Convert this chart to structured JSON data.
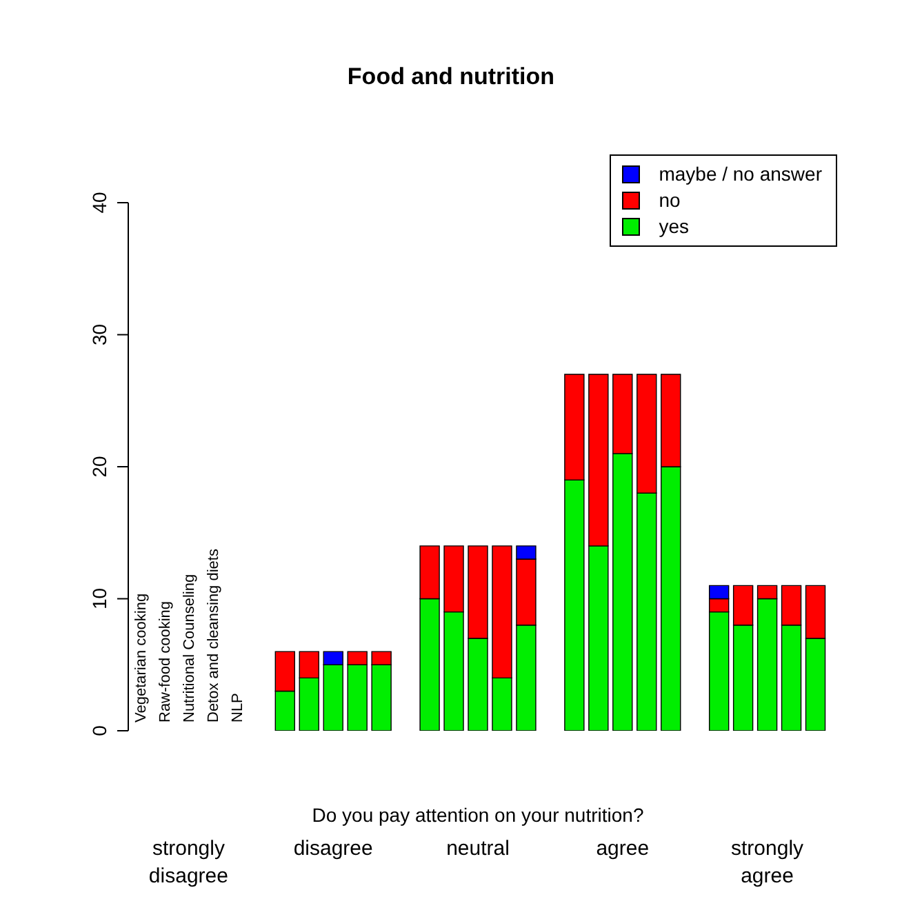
{
  "chart_data": {
    "type": "bar",
    "title": "Food and nutrition",
    "xlabel": "Do you pay attention on your nutrition?",
    "categories": [
      "Vegetarian cooking",
      "Raw-food cooking",
      "Nutritional Counseling",
      "Detox and cleansing diets",
      "NLP",
      null,
      null,
      null,
      null,
      null,
      null,
      null,
      null,
      null,
      null,
      null,
      null,
      null,
      null,
      null,
      null,
      null,
      null,
      null,
      null,
      null,
      null,
      null,
      null
    ],
    "series": [
      {
        "name": "yes",
        "color": "#00ee00",
        "values": [
          0,
          0,
          0,
          0,
          0,
          null,
          3,
          4,
          5,
          5,
          5,
          null,
          10,
          9,
          7,
          4,
          8,
          null,
          19,
          14,
          21,
          18,
          20,
          null,
          9,
          8,
          10,
          8,
          7
        ]
      },
      {
        "name": "no",
        "color": "#ff0000",
        "values": [
          0,
          0,
          0,
          0,
          0,
          null,
          3,
          2,
          0,
          1,
          1,
          null,
          4,
          5,
          7,
          10,
          5,
          null,
          8,
          13,
          6,
          9,
          7,
          null,
          1,
          3,
          1,
          3,
          4
        ]
      },
      {
        "name": "maybe / no answer",
        "color": "#0000ff",
        "values": [
          0,
          0,
          0,
          0,
          0,
          null,
          0,
          0,
          1,
          0,
          0,
          null,
          0,
          0,
          0,
          0,
          1,
          null,
          0,
          0,
          0,
          0,
          0,
          null,
          1,
          0,
          0,
          0,
          0
        ]
      }
    ],
    "stacked": true,
    "ylim": [
      0,
      40
    ],
    "yticks": [
      0,
      10,
      20,
      30,
      40
    ],
    "grid": false,
    "legend": "top right",
    "annotations": [
      "strongly disagree",
      "disagree",
      "neutral",
      "agree",
      "strongly agree"
    ]
  }
}
